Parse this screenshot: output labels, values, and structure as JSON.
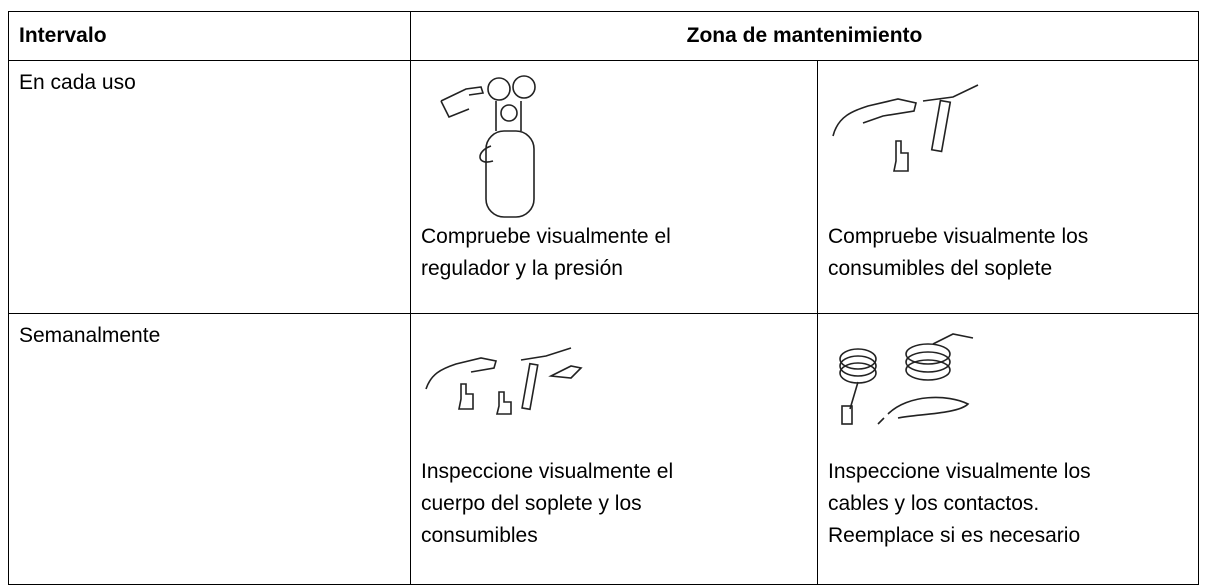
{
  "table": {
    "header": [
      "Intervalo",
      "Zona de mantenimiento"
    ],
    "rows": [
      {
        "interval": "En cada uso",
        "items": [
          [
            "Compruebe visualmente el",
            "regulador y la presión"
          ],
          [
            "Compruebe visualmente los",
            "consumibles del soplete"
          ]
        ]
      },
      {
        "interval": "Semanalmente",
        "items": [
          [
            "Inspeccione visualmente el",
            "cuerpo del soplete y los",
            "consumibles"
          ],
          [
            "Inspeccione visualmente los",
            "cables y los contactos.",
            "Reemplace si es necesario"
          ]
        ]
      }
    ]
  }
}
